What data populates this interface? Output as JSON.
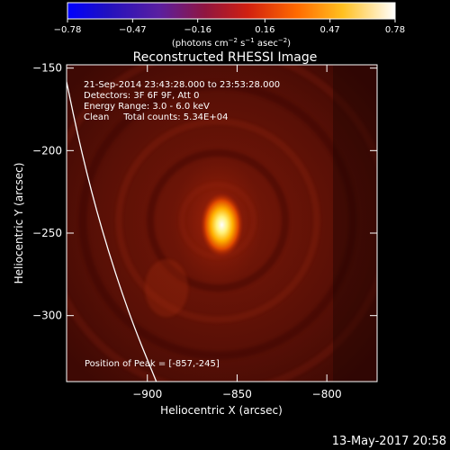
{
  "chart_data": {
    "type": "heatmap",
    "title": "Reconstructed RHESSI Image",
    "xlabel": "Heliocentric X (arcsec)",
    "ylabel": "Heliocentric Y (arcsec)",
    "xlim": [
      -945,
      -772
    ],
    "ylim": [
      -340,
      -148
    ],
    "x_ticks": [
      -900,
      -850,
      -800
    ],
    "y_ticks": [
      -150,
      -200,
      -250,
      -300
    ],
    "colorbar": {
      "min": -0.78,
      "max": 0.78,
      "ticks": [
        "-0.78",
        "-0.47",
        "-0.16",
        "0.16",
        "0.47",
        "0.78"
      ],
      "label_parts": [
        "(photons cm",
        "-2",
        " s",
        "-1",
        " asec",
        "-2",
        ")"
      ]
    },
    "info_lines": [
      "21-Sep-2014 23:43:28.000 to 23:53:28.000",
      "Detectors: 3F 6F 9F, Att 0",
      "Energy Range: 3.0 - 6.0 keV",
      "Clean     Total counts: 5.34E+04"
    ],
    "peak_label": "Position of Peak = [-857,-245]",
    "peak": {
      "x": -857,
      "y": -245,
      "value": 0.78
    },
    "limb": [
      [
        -947,
        -148
      ],
      [
        -937,
        -200
      ],
      [
        -925,
        -250
      ],
      [
        -910,
        -300
      ],
      [
        -895,
        -340
      ]
    ]
  },
  "footer": {
    "date": "13-May-2017 20:58"
  }
}
